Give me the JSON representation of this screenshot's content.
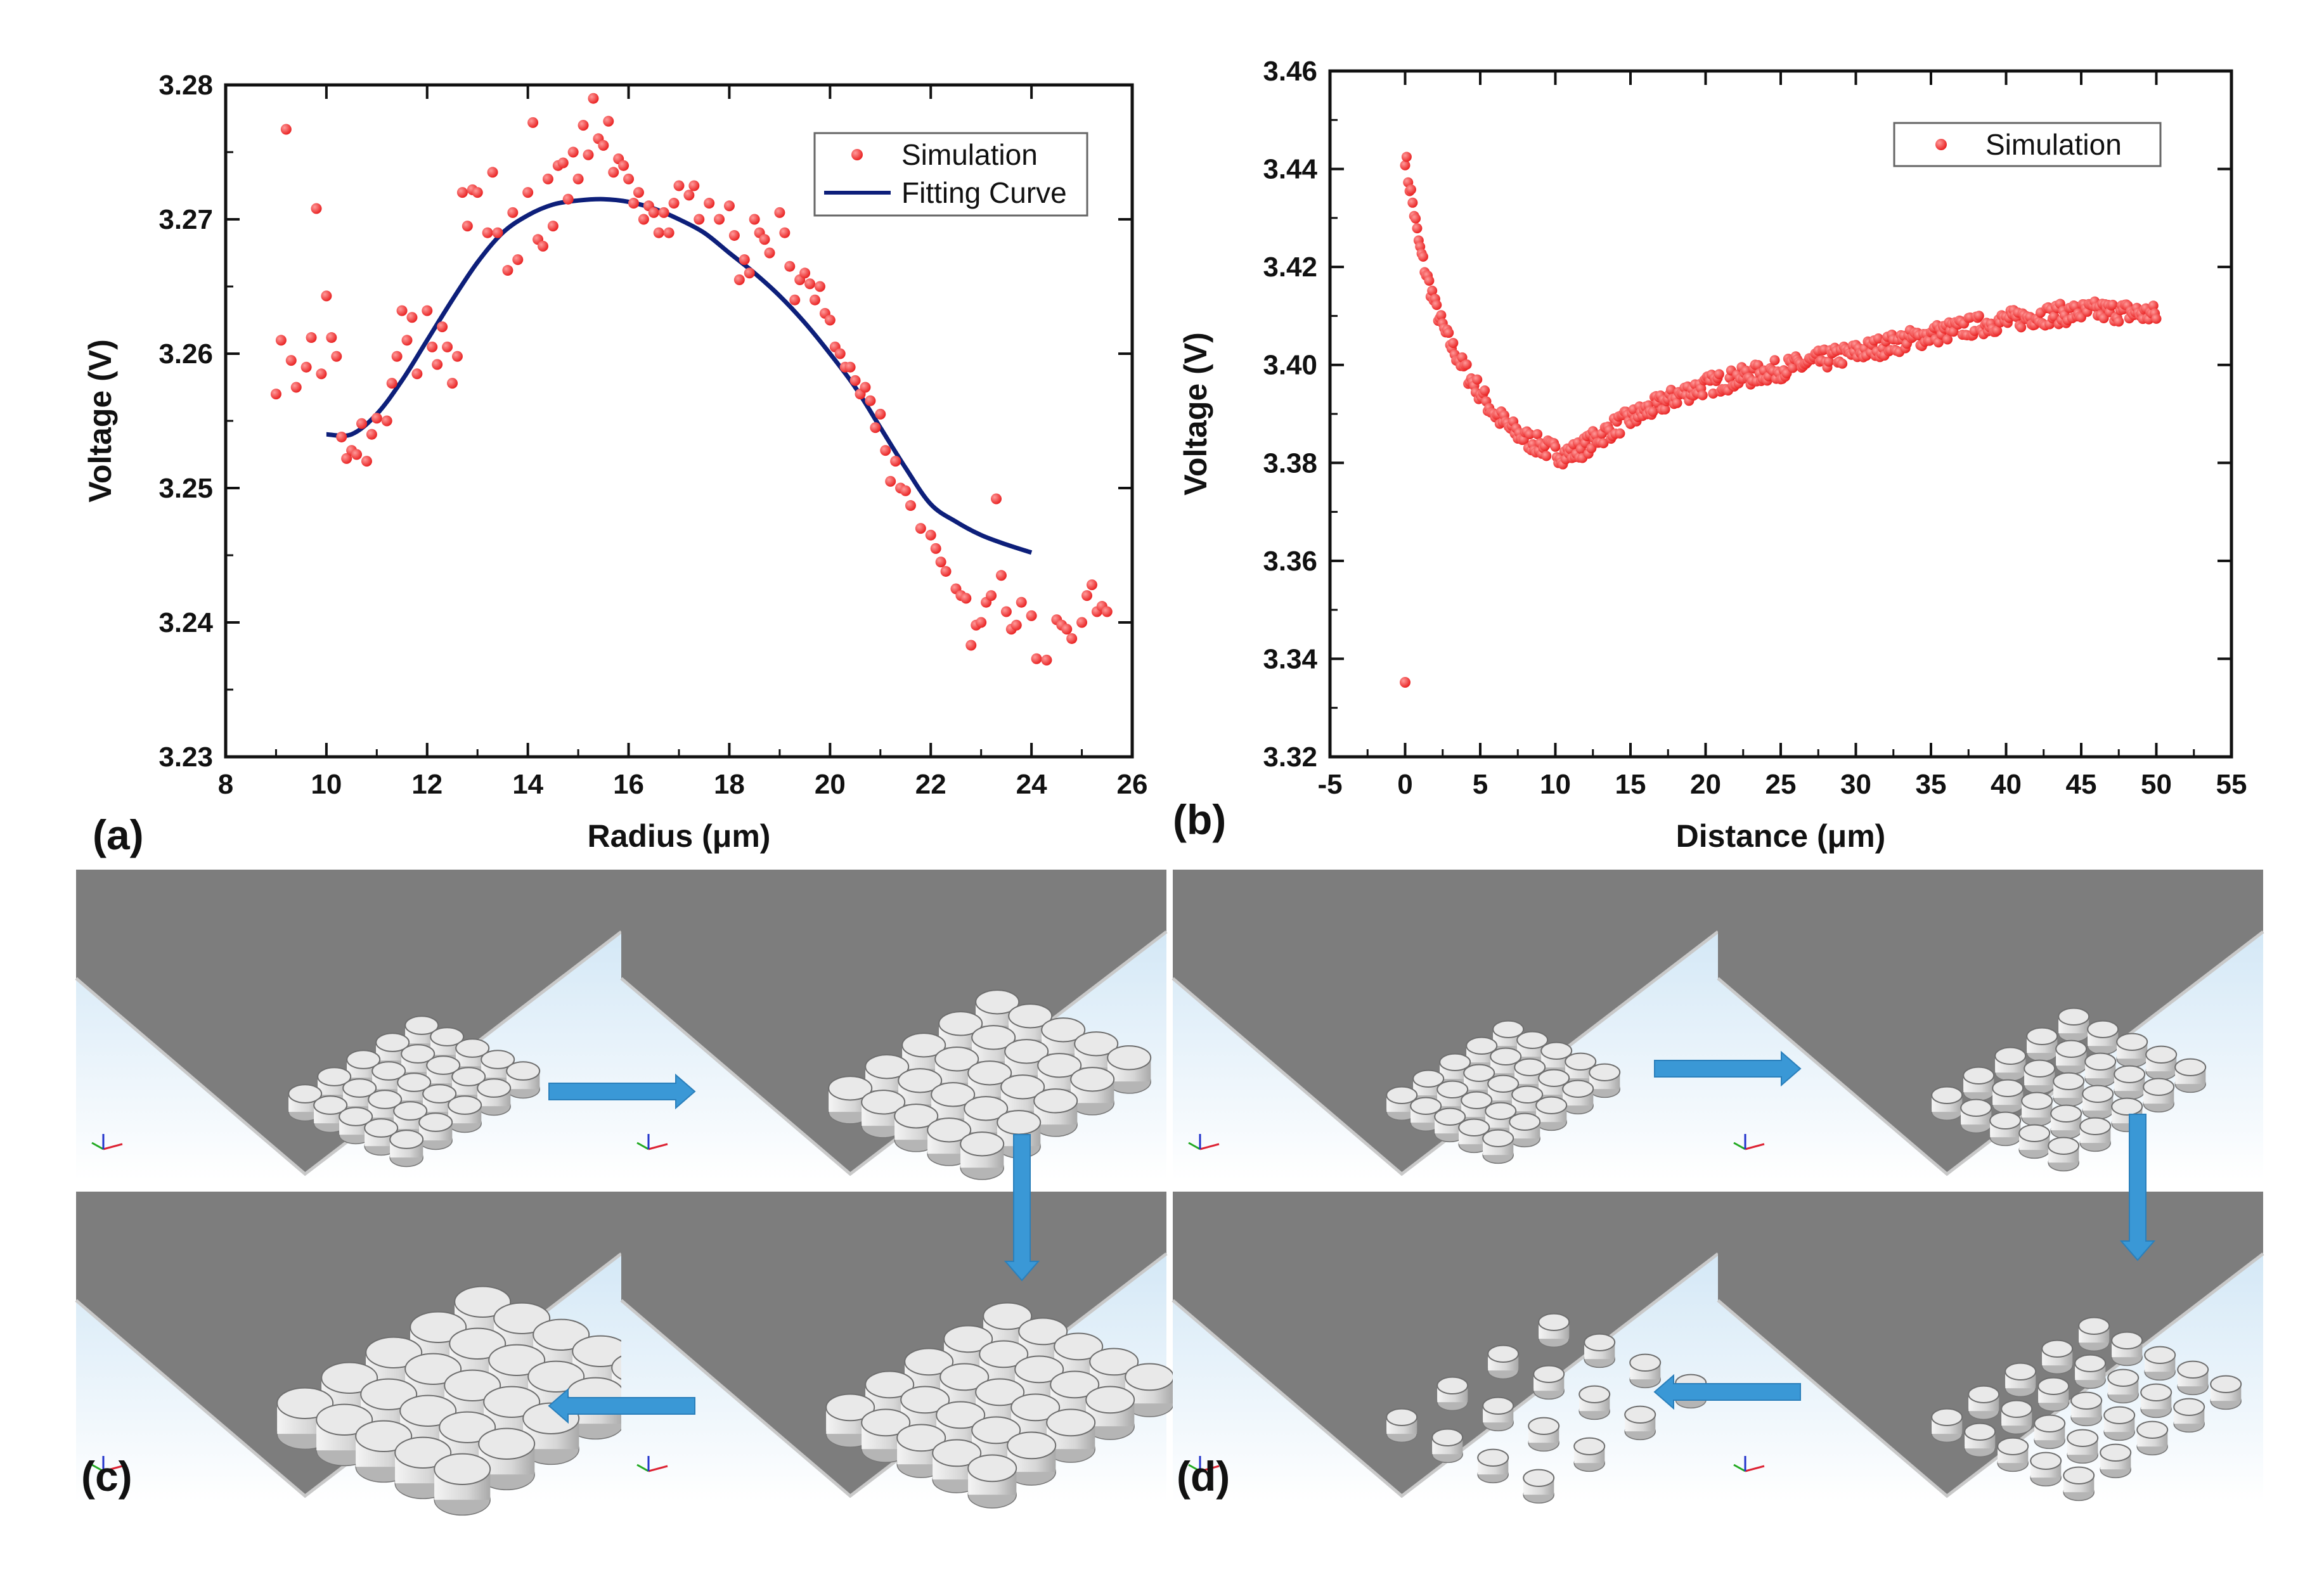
{
  "panel_labels": {
    "a": "(a)",
    "b": "(b)",
    "c": "(c)",
    "d": "(d)"
  },
  "colors": {
    "points": "#ff3b3b",
    "fit_line": "#0d1f7a",
    "arrow": "#3a98d6",
    "plate": "#7d7d7d"
  },
  "chart_data": [
    {
      "type": "scatter",
      "panel": "(a)",
      "xlabel": "Radius (μm)",
      "ylabel": "Voltage (V)",
      "xlim": [
        8,
        26
      ],
      "ylim": [
        3.23,
        3.28
      ],
      "xticks": [
        "8",
        "10",
        "12",
        "14",
        "16",
        "18",
        "20",
        "22",
        "24",
        "26"
      ],
      "yticks": [
        "3.23",
        "3.24",
        "3.25",
        "3.26",
        "3.27",
        "3.28"
      ],
      "legend": [
        "Simulation",
        "Fitting Curve"
      ],
      "legend_position": "top-right",
      "series": [
        {
          "name": "Simulation",
          "style": "markers",
          "points": [
            [
              9.0,
              3.257
            ],
            [
              9.1,
              3.261
            ],
            [
              9.2,
              3.2767
            ],
            [
              9.3,
              3.2595
            ],
            [
              9.4,
              3.2575
            ],
            [
              9.6,
              3.259
            ],
            [
              9.7,
              3.2612
            ],
            [
              9.8,
              3.2708
            ],
            [
              9.9,
              3.2585
            ],
            [
              10.0,
              3.2643
            ],
            [
              10.1,
              3.2612
            ],
            [
              10.2,
              3.2598
            ],
            [
              10.3,
              3.2538
            ],
            [
              10.4,
              3.2522
            ],
            [
              10.5,
              3.2528
            ],
            [
              10.6,
              3.2525
            ],
            [
              10.7,
              3.2548
            ],
            [
              10.8,
              3.252
            ],
            [
              10.9,
              3.254
            ],
            [
              11.0,
              3.2552
            ],
            [
              11.2,
              3.255
            ],
            [
              11.3,
              3.2578
            ],
            [
              11.4,
              3.2598
            ],
            [
              11.5,
              3.2632
            ],
            [
              11.6,
              3.261
            ],
            [
              11.7,
              3.2627
            ],
            [
              11.8,
              3.2585
            ],
            [
              12.0,
              3.2632
            ],
            [
              12.1,
              3.2605
            ],
            [
              12.2,
              3.2592
            ],
            [
              12.3,
              3.262
            ],
            [
              12.4,
              3.2605
            ],
            [
              12.5,
              3.2578
            ],
            [
              12.6,
              3.2598
            ],
            [
              12.7,
              3.272
            ],
            [
              12.8,
              3.2695
            ],
            [
              12.9,
              3.2722
            ],
            [
              13.0,
              3.272
            ],
            [
              13.2,
              3.269
            ],
            [
              13.3,
              3.2735
            ],
            [
              13.4,
              3.269
            ],
            [
              13.6,
              3.2662
            ],
            [
              13.7,
              3.2705
            ],
            [
              13.8,
              3.267
            ],
            [
              14.0,
              3.272
            ],
            [
              14.1,
              3.2772
            ],
            [
              14.2,
              3.2685
            ],
            [
              14.3,
              3.268
            ],
            [
              14.4,
              3.273
            ],
            [
              14.5,
              3.2695
            ],
            [
              14.6,
              3.274
            ],
            [
              14.7,
              3.2742
            ],
            [
              14.8,
              3.2715
            ],
            [
              14.9,
              3.275
            ],
            [
              15.0,
              3.273
            ],
            [
              15.1,
              3.277
            ],
            [
              15.2,
              3.2748
            ],
            [
              15.3,
              3.279
            ],
            [
              15.4,
              3.276
            ],
            [
              15.5,
              3.2755
            ],
            [
              15.6,
              3.2773
            ],
            [
              15.7,
              3.2735
            ],
            [
              15.8,
              3.2745
            ],
            [
              15.9,
              3.274
            ],
            [
              16.0,
              3.273
            ],
            [
              16.1,
              3.2712
            ],
            [
              16.2,
              3.272
            ],
            [
              16.3,
              3.27
            ],
            [
              16.4,
              3.271
            ],
            [
              16.5,
              3.2705
            ],
            [
              16.6,
              3.269
            ],
            [
              16.7,
              3.2705
            ],
            [
              16.8,
              3.269
            ],
            [
              16.9,
              3.2712
            ],
            [
              17.0,
              3.2725
            ],
            [
              17.2,
              3.2718
            ],
            [
              17.3,
              3.2725
            ],
            [
              17.4,
              3.27
            ],
            [
              17.6,
              3.2712
            ],
            [
              17.8,
              3.27
            ],
            [
              18.0,
              3.271
            ],
            [
              18.1,
              3.2688
            ],
            [
              18.2,
              3.2655
            ],
            [
              18.3,
              3.267
            ],
            [
              18.4,
              3.266
            ],
            [
              18.5,
              3.27
            ],
            [
              18.6,
              3.269
            ],
            [
              18.7,
              3.2685
            ],
            [
              18.8,
              3.2675
            ],
            [
              19.0,
              3.2705
            ],
            [
              19.1,
              3.269
            ],
            [
              19.2,
              3.2665
            ],
            [
              19.3,
              3.264
            ],
            [
              19.4,
              3.2655
            ],
            [
              19.5,
              3.266
            ],
            [
              19.6,
              3.2652
            ],
            [
              19.7,
              3.264
            ],
            [
              19.8,
              3.265
            ],
            [
              19.9,
              3.263
            ],
            [
              20.0,
              3.2625
            ],
            [
              20.1,
              3.2605
            ],
            [
              20.2,
              3.26
            ],
            [
              20.3,
              3.259
            ],
            [
              20.4,
              3.259
            ],
            [
              20.5,
              3.258
            ],
            [
              20.6,
              3.257
            ],
            [
              20.7,
              3.2575
            ],
            [
              20.8,
              3.2565
            ],
            [
              20.9,
              3.2545
            ],
            [
              21.0,
              3.2555
            ],
            [
              21.1,
              3.2528
            ],
            [
              21.2,
              3.2505
            ],
            [
              21.3,
              3.252
            ],
            [
              21.4,
              3.25
            ],
            [
              21.5,
              3.2498
            ],
            [
              21.6,
              3.2487
            ],
            [
              21.8,
              3.247
            ],
            [
              22.0,
              3.2465
            ],
            [
              22.1,
              3.2455
            ],
            [
              22.2,
              3.2445
            ],
            [
              22.3,
              3.2438
            ],
            [
              22.5,
              3.2425
            ],
            [
              22.6,
              3.242
            ],
            [
              22.7,
              3.2418
            ],
            [
              22.8,
              3.2383
            ],
            [
              22.9,
              3.2398
            ],
            [
              23.0,
              3.24
            ],
            [
              23.1,
              3.2415
            ],
            [
              23.2,
              3.242
            ],
            [
              23.3,
              3.2492
            ],
            [
              23.4,
              3.2435
            ],
            [
              23.5,
              3.2408
            ],
            [
              23.6,
              3.2395
            ],
            [
              23.7,
              3.2398
            ],
            [
              23.8,
              3.2415
            ],
            [
              24.0,
              3.2405
            ],
            [
              24.1,
              3.2373
            ],
            [
              24.3,
              3.2372
            ],
            [
              24.5,
              3.2402
            ],
            [
              24.6,
              3.2398
            ],
            [
              24.7,
              3.2395
            ],
            [
              24.8,
              3.2388
            ],
            [
              25.0,
              3.24
            ],
            [
              25.1,
              3.242
            ],
            [
              25.2,
              3.2428
            ],
            [
              25.3,
              3.2408
            ],
            [
              25.4,
              3.2412
            ],
            [
              25.5,
              3.2408
            ]
          ]
        },
        {
          "name": "Fitting Curve",
          "style": "line",
          "points": [
            [
              10.0,
              3.254
            ],
            [
              10.5,
              3.254
            ],
            [
              11.0,
              3.2555
            ],
            [
              11.5,
              3.258
            ],
            [
              12.0,
              3.261
            ],
            [
              12.5,
              3.264
            ],
            [
              13.0,
              3.2668
            ],
            [
              13.5,
              3.269
            ],
            [
              14.0,
              3.2703
            ],
            [
              14.5,
              3.2711
            ],
            [
              15.0,
              3.2714
            ],
            [
              15.5,
              3.2715
            ],
            [
              16.0,
              3.2713
            ],
            [
              16.5,
              3.2708
            ],
            [
              17.0,
              3.27
            ],
            [
              17.5,
              3.269
            ],
            [
              18.0,
              3.2675
            ],
            [
              18.5,
              3.266
            ],
            [
              19.0,
              3.2643
            ],
            [
              19.5,
              3.2623
            ],
            [
              20.0,
              3.26
            ],
            [
              20.5,
              3.2575
            ],
            [
              21.0,
              3.2545
            ],
            [
              21.5,
              3.2515
            ],
            [
              22.0,
              3.2488
            ],
            [
              22.5,
              3.2475
            ],
            [
              23.0,
              3.2465
            ],
            [
              23.5,
              3.2458
            ],
            [
              24.0,
              3.2452
            ]
          ]
        }
      ]
    },
    {
      "type": "scatter",
      "panel": "(b)",
      "xlabel": "Distance (μm)",
      "ylabel": "Voltage (V)",
      "xlim": [
        -5,
        55
      ],
      "ylim": [
        3.32,
        3.46
      ],
      "xticks": [
        "-5",
        "0",
        "5",
        "10",
        "15",
        "20",
        "25",
        "30",
        "35",
        "40",
        "45",
        "50",
        "55"
      ],
      "yticks": [
        "3.32",
        "3.34",
        "3.36",
        "3.38",
        "3.40",
        "3.42",
        "3.44",
        "3.46"
      ],
      "legend": [
        "Simulation"
      ],
      "legend_position": "top-right",
      "series": [
        {
          "name": "Simulation",
          "style": "markers",
          "description": "dense point cloud, approx. 0.1 μm spacing",
          "points": [
            [
              0.0,
              3.3352
            ],
            [
              0.0,
              3.4425
            ],
            [
              0.1,
              3.441
            ],
            [
              0.2,
              3.438
            ],
            [
              0.4,
              3.435
            ],
            [
              0.6,
              3.431
            ],
            [
              0.8,
              3.427
            ],
            [
              1.0,
              3.4235
            ],
            [
              1.2,
              3.421
            ],
            [
              1.5,
              3.4175
            ],
            [
              1.8,
              3.4145
            ],
            [
              2.0,
              3.412
            ],
            [
              2.3,
              3.4095
            ],
            [
              2.6,
              3.407
            ],
            [
              3.0,
              3.4045
            ],
            [
              3.5,
              3.4015
            ],
            [
              4.0,
              3.399
            ],
            [
              4.5,
              3.3965
            ],
            [
              5.0,
              3.3945
            ],
            [
              5.5,
              3.392
            ],
            [
              6.0,
              3.39
            ],
            [
              6.5,
              3.3885
            ],
            [
              7.0,
              3.387
            ],
            [
              7.5,
              3.386
            ],
            [
              8.0,
              3.385
            ],
            [
              8.5,
              3.3842
            ],
            [
              9.0,
              3.3835
            ],
            [
              9.5,
              3.3828
            ],
            [
              10.0,
              3.3822
            ],
            [
              10.5,
              3.3818
            ],
            [
              11.0,
              3.382
            ],
            [
              11.5,
              3.3825
            ],
            [
              12.0,
              3.3835
            ],
            [
              12.5,
              3.3845
            ],
            [
              13.0,
              3.3855
            ],
            [
              14.0,
              3.3875
            ],
            [
              15.0,
              3.389
            ],
            [
              16.0,
              3.3905
            ],
            [
              17.0,
              3.392
            ],
            [
              18.0,
              3.3935
            ],
            [
              19.0,
              3.3948
            ],
            [
              20.0,
              3.3958
            ],
            [
              22.0,
              3.3972
            ],
            [
              24.0,
              3.3985
            ],
            [
              26.0,
              3.3998
            ],
            [
              28.0,
              3.4012
            ],
            [
              30.0,
              3.4025
            ],
            [
              32.0,
              3.404
            ],
            [
              34.0,
              3.4055
            ],
            [
              36.0,
              3.4068
            ],
            [
              38.0,
              3.408
            ],
            [
              40.0,
              3.409
            ],
            [
              42.0,
              3.41
            ],
            [
              44.0,
              3.4105
            ],
            [
              46.0,
              3.411
            ],
            [
              48.0,
              3.4108
            ],
            [
              50.0,
              3.4102
            ]
          ]
        }
      ]
    }
  ]
}
